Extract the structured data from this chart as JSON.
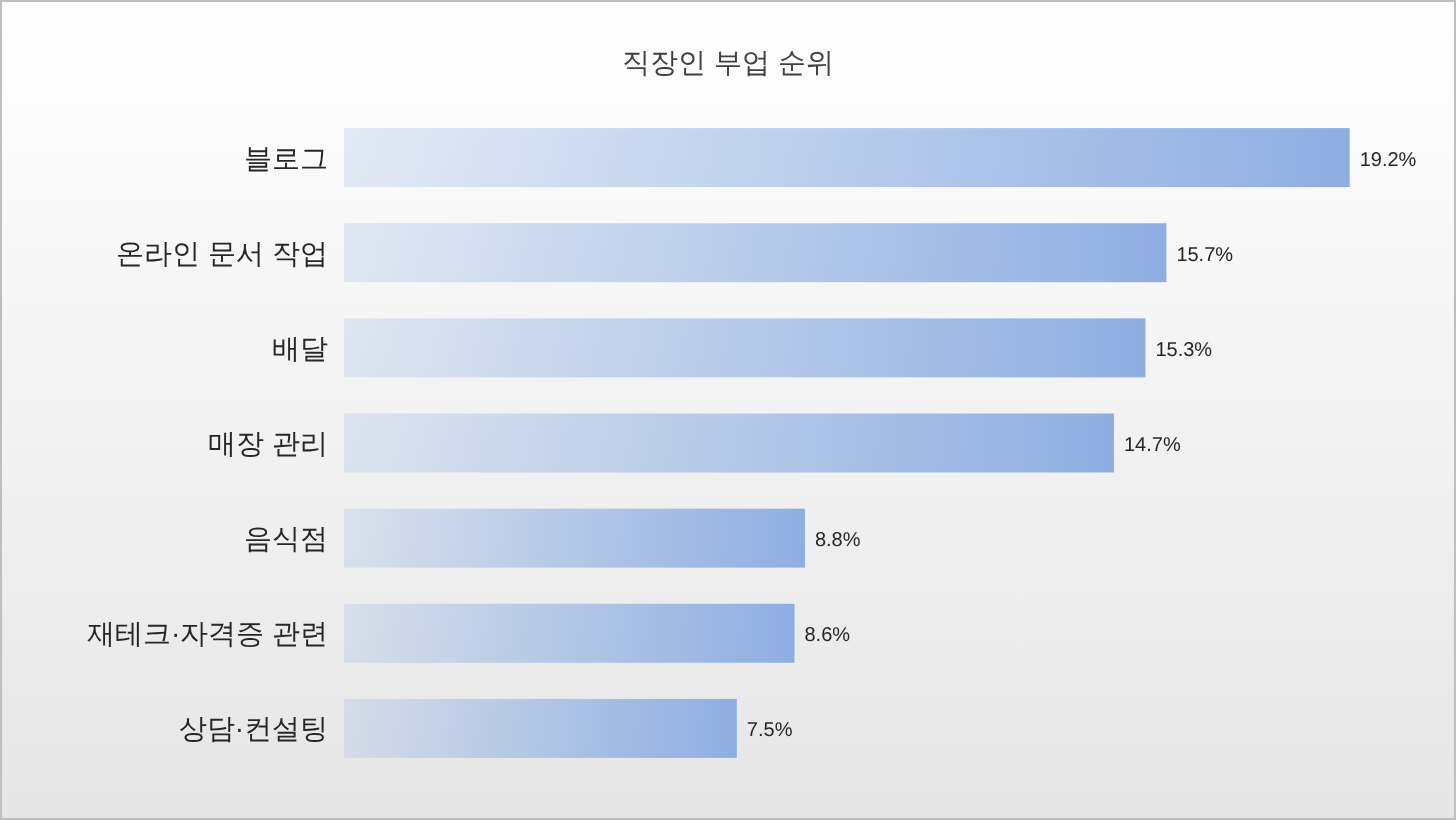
{
  "chart_data": {
    "type": "bar",
    "orientation": "horizontal",
    "title": "직장인 부업 순위",
    "categories": [
      "블로그",
      "온라인 문서 작업",
      "배달",
      "매장 관리",
      "음식점",
      "재테크·자격증 관련",
      "상담·컨설팅"
    ],
    "values": [
      19.2,
      15.7,
      15.3,
      14.7,
      8.8,
      8.6,
      7.5
    ],
    "value_labels": [
      "19.2%",
      "15.7%",
      "15.3%",
      "14.7%",
      "8.8%",
      "8.6%",
      "7.5%"
    ],
    "color": "#8eaee2"
  }
}
